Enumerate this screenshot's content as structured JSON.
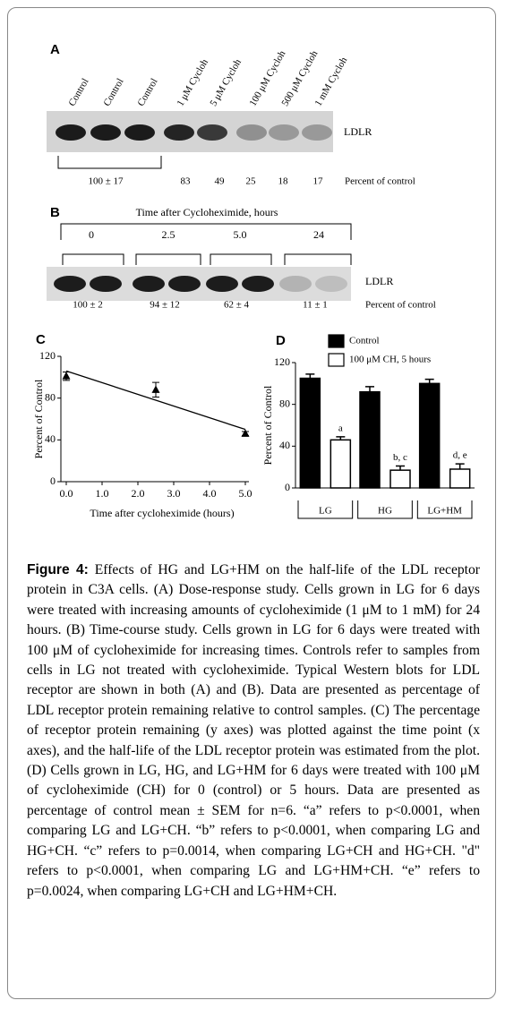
{
  "panel_a": {
    "label": "A",
    "lanes": [
      "Control",
      "Control",
      "Control",
      "1 μM Cycloh",
      "5 μM Cycloh",
      "100 μM Cycloh",
      "500 μM Cycloh",
      "1 mM Cycloh"
    ],
    "blot_label": "LDLR",
    "percents": [
      "100 ± 17",
      83,
      49,
      25,
      18,
      17
    ],
    "row_label": "Percent of control"
  },
  "panel_b": {
    "label": "B",
    "title": "Time after Cycloheximide,  hours",
    "groups": [
      "0",
      "2.5",
      "5.0",
      "24"
    ],
    "blot_label": "LDLR",
    "percents": [
      "100 ± 2",
      "94 ± 12",
      "62 ± 4",
      "11 ± 1"
    ],
    "row_label": "Percent of control"
  },
  "chart_data": [
    {
      "type": "scatter",
      "panel": "C",
      "x_label": "Time after cycloheximide (hours)",
      "y_label": "Percent of Control",
      "x": [
        0,
        2.5,
        5
      ],
      "values": [
        101,
        88,
        46
      ],
      "errors": [
        4,
        7,
        2
      ],
      "trend_line": {
        "x": [
          0,
          5
        ],
        "values": [
          106,
          50
        ]
      },
      "color": "#000000",
      "xlim": [
        -0.15,
        5.1
      ],
      "xticks": [
        {
          "value": 0,
          "label": "0.0"
        },
        {
          "value": 1,
          "label": "1.0"
        },
        {
          "value": 2,
          "label": "2.0"
        },
        {
          "value": 3,
          "label": "3.0"
        },
        {
          "value": 4,
          "label": "4.0"
        },
        {
          "value": 5,
          "label": "5.0"
        }
      ],
      "ylim": [
        0,
        120
      ],
      "yticks": [
        0,
        40,
        80,
        120
      ]
    },
    {
      "type": "bar",
      "panel": "D",
      "y_label": "Percent of Control",
      "categories": [
        "LG",
        "HG",
        "LG+HM"
      ],
      "series": [
        {
          "name": "Control",
          "color": "#000000",
          "values": [
            105,
            92,
            100
          ],
          "errors": [
            4,
            5,
            4
          ]
        },
        {
          "name": "100 μM CH, 5 hours",
          "color": "#ffffff",
          "values": [
            46,
            17,
            18
          ],
          "errors": [
            3,
            4,
            5
          ],
          "annotations": [
            "a",
            "b, c",
            "d, e"
          ]
        }
      ],
      "ylim": [
        0,
        120
      ],
      "yticks": [
        0,
        40,
        80,
        120
      ]
    }
  ],
  "caption": {
    "label": "Figure 4:",
    "text": "Effects of HG and LG+HM on the half-life of the LDL receptor protein in C3A cells. (A) Dose-response study. Cells grown in LG for 6 days were treated with increasing amounts of cycloheximide (1 μM to 1 mM) for 24 hours. (B) Time-course study. Cells grown in LG for 6 days were treated with 100 μM of cycloheximide for increasing times. Controls refer to samples from cells in LG not treated with cycloheximide. Typical Western blots for LDL receptor are shown in both (A) and (B). Data are presented as percentage of LDL receptor protein remaining relative to control samples. (C) The percentage of receptor protein remaining (y axes) was plotted against the time point (x axes), and the half-life of the LDL receptor protein was estimated from the plot. (D) Cells grown in LG, HG, and LG+HM for 6 days were treated with 100 μM of cycloheximide (CH) for 0 (control) or 5 hours. Data are presented as percentage of control mean ± SEM for n=6. “a” refers to p<0.0001, when comparing LG and LG+CH. “b” refers to p<0.0001, when comparing LG and HG+CH. “c” refers to p=0.0014, when comparing LG+CH and HG+CH. \"d\" refers to p<0.0001, when comparing LG and LG+HM+CH. “e” refers to p=0.0024, when comparing LG+CH and LG+HM+CH."
  }
}
